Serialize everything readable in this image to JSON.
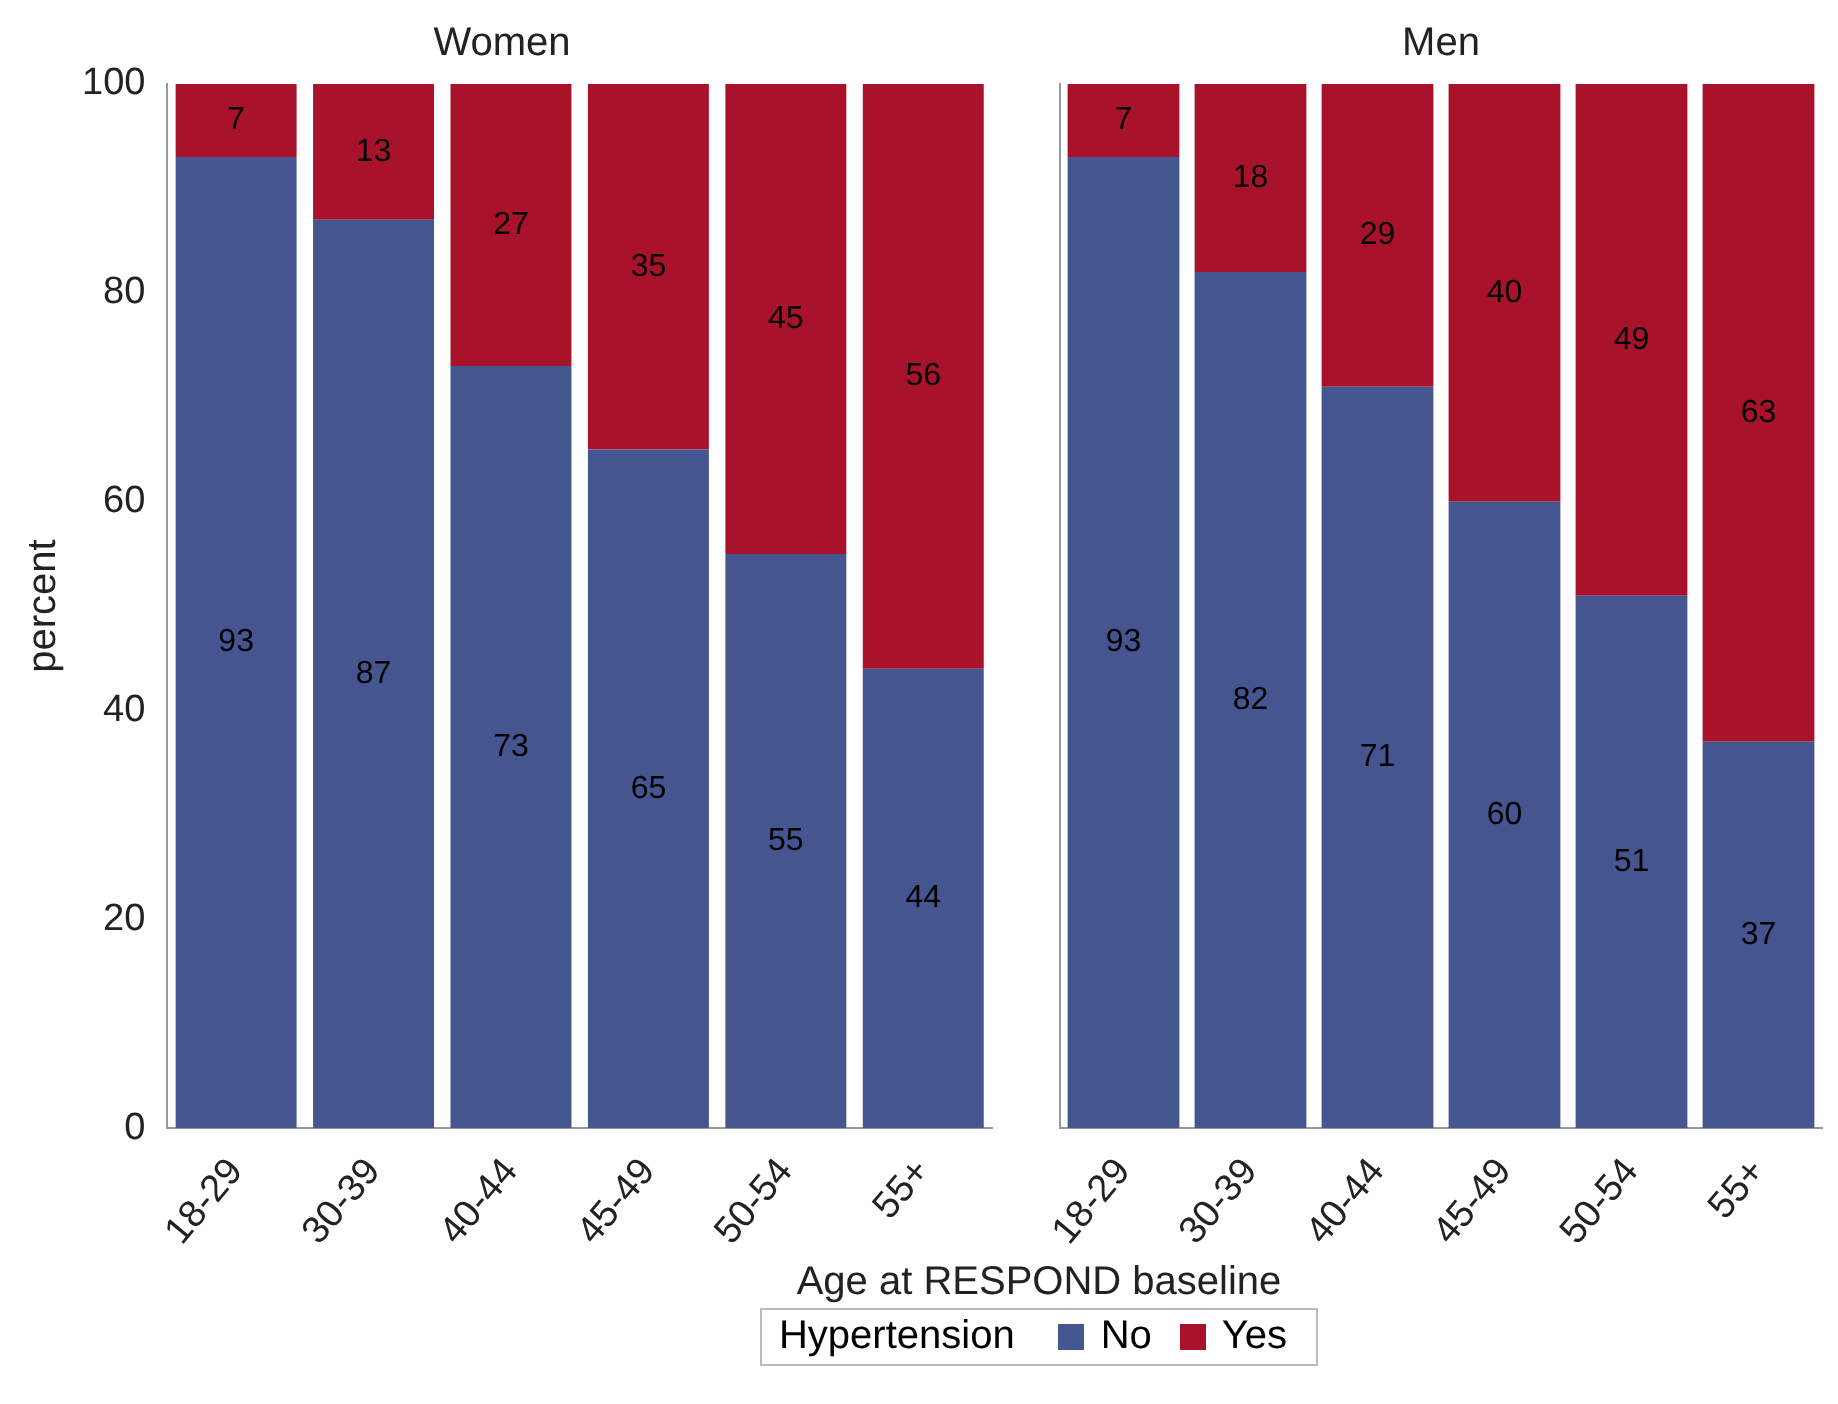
{
  "chart_data": [
    {
      "type": "bar",
      "title": "Women",
      "xlabel": "Age at RESPOND baseline",
      "ylabel": "percent",
      "legend_title": "Hypertension",
      "legend": "bottom",
      "stacked": true,
      "data_labels": true,
      "grid": false,
      "categories": [
        "18-29",
        "30-39",
        "40-44",
        "45-49",
        "50-54",
        "55+"
      ],
      "ylim": [
        0,
        100
      ],
      "yticks": [
        0,
        20,
        40,
        60,
        80,
        100
      ],
      "series": [
        {
          "name": "No",
          "color": "#44558f",
          "values": [
            93,
            87,
            73,
            65,
            55,
            44
          ]
        },
        {
          "name": "Yes",
          "color": "#a8122a",
          "values": [
            7,
            13,
            27,
            35,
            45,
            56
          ]
        }
      ]
    },
    {
      "type": "bar",
      "title": "Men",
      "stacked": true,
      "data_labels": true,
      "grid": false,
      "tick_labels": "x",
      "categories": [
        "18-29",
        "30-39",
        "40-44",
        "45-49",
        "50-54",
        "55+"
      ],
      "ylim": [
        0,
        100
      ],
      "yticks": [
        0,
        20,
        40,
        60,
        80,
        100
      ],
      "series": [
        {
          "color": "#44558f",
          "values": [
            93,
            82,
            71,
            60,
            51,
            37
          ]
        },
        {
          "color": "#a8122a",
          "values": [
            7,
            18,
            29,
            40,
            49,
            63
          ]
        }
      ]
    }
  ]
}
